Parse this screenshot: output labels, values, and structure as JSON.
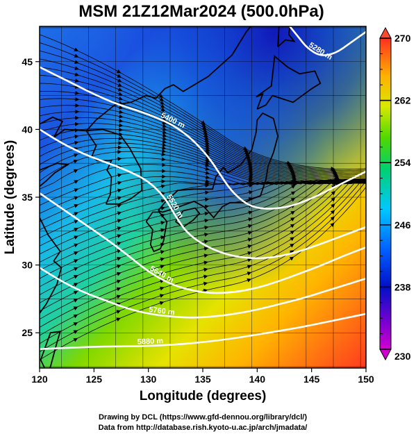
{
  "title": "MSM 21Z12Mar2024 (500.0hPa)",
  "xlabel": "Longitude (degrees)",
  "ylabel": "Latitude  (degrees)",
  "credit_line1": "Drawing by DCL (https://www.gfd-dennou.org/library/dcl/)",
  "credit_line2": "Data from http://database.rish.kyoto-u.ac.jp/arch/jmadata/",
  "chart_data": {
    "type": "heatmap",
    "title": "MSM 21Z12Mar2024 (500.0hPa)",
    "xlabel": "Longitude (degrees)",
    "ylabel": "Latitude  (degrees)",
    "xlim": [
      120,
      150
    ],
    "ylim": [
      22.4,
      47.6
    ],
    "x_ticks": [
      "120",
      "125",
      "130",
      "135",
      "140",
      "145",
      "150"
    ],
    "y_ticks": [
      "25",
      "30",
      "35",
      "40",
      "45"
    ],
    "x_tick_values": [
      120,
      125,
      130,
      135,
      140,
      145,
      150
    ],
    "y_tick_values": [
      25,
      30,
      35,
      40,
      45
    ],
    "colorbar": {
      "min": 230,
      "max": 270,
      "labels": [
        "270",
        "262",
        "254",
        "246",
        "238",
        "230"
      ],
      "label_values": [
        270,
        262,
        254,
        246,
        238,
        230
      ],
      "colormap": [
        "#d000d0",
        "#0000c8",
        "#0060ff",
        "#00c8ff",
        "#00d080",
        "#40d800",
        "#d8e800",
        "#ffb000",
        "#ff4020"
      ]
    },
    "contours": [
      {
        "label": "5400 m",
        "points": [
          [
            120,
            44.6
          ],
          [
            121.5,
            44.0
          ],
          [
            123,
            43.4
          ],
          [
            125,
            42.6
          ],
          [
            127,
            41.9
          ],
          [
            129,
            41.4
          ],
          [
            131,
            40.8
          ],
          [
            132.5,
            40.2
          ],
          [
            134,
            39.3
          ],
          [
            135.5,
            38.0
          ],
          [
            136.5,
            36.8
          ],
          [
            137.5,
            35.6
          ],
          [
            138.5,
            34.8
          ],
          [
            139.5,
            34.3
          ],
          [
            141,
            34.1
          ],
          [
            143,
            34.3
          ],
          [
            145,
            34.9
          ],
          [
            147,
            35.7
          ],
          [
            149,
            36.5
          ],
          [
            150,
            36.9
          ]
        ]
      },
      {
        "label": "5520 m",
        "points": [
          [
            120,
            40.0
          ],
          [
            122,
            39.0
          ],
          [
            124,
            38.2
          ],
          [
            126,
            37.6
          ],
          [
            128,
            37.0
          ],
          [
            130,
            36.2
          ],
          [
            131.5,
            35.0
          ],
          [
            132.5,
            33.6
          ],
          [
            133.5,
            32.4
          ],
          [
            135,
            31.5
          ],
          [
            137,
            30.8
          ],
          [
            139,
            30.5
          ],
          [
            141,
            30.5
          ],
          [
            143,
            30.8
          ],
          [
            145,
            31.3
          ],
          [
            147,
            31.9
          ],
          [
            149,
            32.5
          ],
          [
            150,
            32.8
          ]
        ]
      },
      {
        "label": "5640 m",
        "points": [
          [
            120,
            35.3
          ],
          [
            122,
            34.2
          ],
          [
            124,
            33.1
          ],
          [
            126,
            32.0
          ],
          [
            128,
            30.8
          ],
          [
            130,
            29.5
          ],
          [
            132,
            28.6
          ],
          [
            134,
            28.1
          ],
          [
            136,
            27.9
          ],
          [
            138,
            28.0
          ],
          [
            140,
            28.3
          ],
          [
            142,
            28.8
          ],
          [
            144,
            29.4
          ],
          [
            146,
            30.0
          ],
          [
            148,
            30.7
          ],
          [
            150,
            31.3
          ]
        ]
      },
      {
        "label": "5760 m",
        "points": [
          [
            120,
            29.8
          ],
          [
            122,
            28.8
          ],
          [
            124,
            28.0
          ],
          [
            126,
            27.4
          ],
          [
            128,
            26.8
          ],
          [
            130,
            26.4
          ],
          [
            132,
            26.2
          ],
          [
            134,
            26.1
          ],
          [
            136,
            26.2
          ],
          [
            138,
            26.4
          ],
          [
            140,
            26.7
          ],
          [
            142,
            27.1
          ],
          [
            144,
            27.5
          ],
          [
            146,
            28.0
          ],
          [
            148,
            28.5
          ],
          [
            150,
            29.0
          ]
        ]
      },
      {
        "label": "5880 m",
        "points": [
          [
            120,
            23.8
          ],
          [
            123,
            23.9
          ],
          [
            126,
            24.0
          ],
          [
            129,
            24.0
          ],
          [
            132,
            24.1
          ],
          [
            135,
            24.3
          ],
          [
            138,
            24.6
          ],
          [
            141,
            25.0
          ],
          [
            144,
            25.4
          ],
          [
            147,
            25.9
          ],
          [
            150,
            26.4
          ]
        ]
      },
      {
        "label": "5280 m",
        "points": [
          [
            143,
            47.6
          ],
          [
            143.8,
            46.8
          ],
          [
            144.6,
            46.0
          ],
          [
            145.8,
            45.4
          ],
          [
            147.2,
            45.6
          ],
          [
            148.6,
            46.4
          ],
          [
            150,
            47.2
          ]
        ]
      }
    ],
    "land_outlines": [
      {
        "name": "Korea",
        "points": [
          [
            126.1,
            34.5
          ],
          [
            126.5,
            35.2
          ],
          [
            126.6,
            36.5
          ],
          [
            126.2,
            37.0
          ],
          [
            126.6,
            37.7
          ],
          [
            125.3,
            37.7
          ],
          [
            124.8,
            38.0
          ],
          [
            125.2,
            38.8
          ],
          [
            124.3,
            39.9
          ],
          [
            125.8,
            40.0
          ],
          [
            127.4,
            39.6
          ],
          [
            128.3,
            38.6
          ],
          [
            129.3,
            37.1
          ],
          [
            129.4,
            35.5
          ],
          [
            128.4,
            34.9
          ],
          [
            127.3,
            34.5
          ],
          [
            126.1,
            34.5
          ]
        ]
      },
      {
        "name": "Kyushu",
        "points": [
          [
            129.8,
            33.2
          ],
          [
            130.4,
            33.9
          ],
          [
            131.0,
            33.9
          ],
          [
            131.7,
            33.2
          ],
          [
            131.4,
            31.8
          ],
          [
            131.1,
            31.2
          ],
          [
            130.5,
            31.0
          ],
          [
            130.2,
            31.5
          ],
          [
            130.4,
            32.6
          ],
          [
            129.8,
            33.2
          ]
        ]
      },
      {
        "name": "Shikoku",
        "points": [
          [
            132.5,
            33.2
          ],
          [
            133.2,
            34.0
          ],
          [
            134.3,
            34.2
          ],
          [
            134.7,
            33.8
          ],
          [
            134.1,
            33.3
          ],
          [
            133.2,
            32.8
          ],
          [
            132.5,
            33.2
          ]
        ]
      },
      {
        "name": "Honshu",
        "points": [
          [
            130.9,
            34.0
          ],
          [
            131.5,
            34.6
          ],
          [
            132.7,
            35.5
          ],
          [
            134.2,
            35.6
          ],
          [
            135.9,
            35.6
          ],
          [
            136.2,
            36.5
          ],
          [
            136.9,
            37.2
          ],
          [
            137.3,
            36.8
          ],
          [
            138.5,
            37.4
          ],
          [
            139.5,
            38.5
          ],
          [
            139.9,
            39.8
          ],
          [
            140.0,
            40.7
          ],
          [
            140.5,
            41.2
          ],
          [
            141.5,
            40.8
          ],
          [
            141.9,
            39.5
          ],
          [
            141.5,
            38.3
          ],
          [
            141.0,
            37.3
          ],
          [
            140.8,
            36.3
          ],
          [
            140.3,
            35.1
          ],
          [
            139.6,
            34.9
          ],
          [
            138.8,
            34.6
          ],
          [
            137.5,
            34.6
          ],
          [
            136.8,
            34.3
          ],
          [
            136.0,
            33.5
          ],
          [
            135.1,
            34.3
          ],
          [
            134.2,
            34.7
          ],
          [
            132.5,
            34.2
          ],
          [
            131.3,
            33.9
          ],
          [
            130.9,
            34.0
          ]
        ]
      },
      {
        "name": "Hokkaido",
        "points": [
          [
            140.0,
            41.5
          ],
          [
            140.5,
            42.6
          ],
          [
            139.9,
            42.4
          ],
          [
            141.3,
            43.2
          ],
          [
            141.6,
            45.4
          ],
          [
            142.8,
            44.6
          ],
          [
            143.9,
            44.1
          ],
          [
            145.3,
            44.3
          ],
          [
            145.8,
            43.4
          ],
          [
            145.0,
            43.0
          ],
          [
            143.3,
            42.0
          ],
          [
            141.4,
            42.5
          ],
          [
            140.8,
            41.8
          ],
          [
            140.0,
            41.5
          ]
        ]
      },
      {
        "name": "Sakhalin",
        "points": [
          [
            141.9,
            46.1
          ],
          [
            142.6,
            46.6
          ],
          [
            143.4,
            46.5
          ],
          [
            142.9,
            47.0
          ],
          [
            143.0,
            47.6
          ],
          [
            142.0,
            47.6
          ],
          [
            141.9,
            46.1
          ]
        ]
      },
      {
        "name": "Taiwan",
        "points": [
          [
            120.1,
            23.0
          ],
          [
            120.7,
            22.0
          ],
          [
            121.0,
            22.5
          ],
          [
            121.6,
            24.3
          ],
          [
            121.9,
            25.1
          ],
          [
            121.0,
            25.0
          ],
          [
            120.1,
            23.0
          ]
        ]
      },
      {
        "name": "Mainland",
        "points": [
          [
            120,
            37.0
          ],
          [
            121.6,
            37.5
          ],
          [
            122.6,
            37.4
          ],
          [
            121.4,
            36.8
          ],
          [
            120.6,
            36.2
          ],
          [
            120.0,
            35.8
          ]
        ]
      },
      {
        "name": "Mainland2",
        "points": [
          [
            120,
            40.4
          ],
          [
            121.2,
            40.9
          ],
          [
            122.1,
            40.6
          ],
          [
            121.3,
            39.4
          ],
          [
            122.3,
            40.0
          ],
          [
            124.3,
            39.9
          ],
          [
            125.2,
            40.7
          ],
          [
            126.9,
            41.8
          ],
          [
            128.4,
            42.0
          ],
          [
            129.8,
            42.5
          ],
          [
            130.7,
            42.3
          ],
          [
            131.5,
            43.0
          ],
          [
            132.3,
            43.3
          ],
          [
            133.2,
            42.8
          ],
          [
            135.5,
            43.9
          ],
          [
            137.7,
            45.5
          ],
          [
            139.0,
            47.2
          ],
          [
            139.4,
            47.6
          ]
        ]
      },
      {
        "name": "MainlandCoast",
        "points": [
          [
            120,
            33.5
          ],
          [
            120.8,
            32.2
          ],
          [
            121.9,
            31.0
          ],
          [
            121.3,
            30.3
          ],
          [
            122.0,
            29.8
          ],
          [
            121.6,
            28.6
          ],
          [
            120.6,
            27.1
          ],
          [
            119.6,
            26.0
          ]
        ]
      }
    ]
  }
}
